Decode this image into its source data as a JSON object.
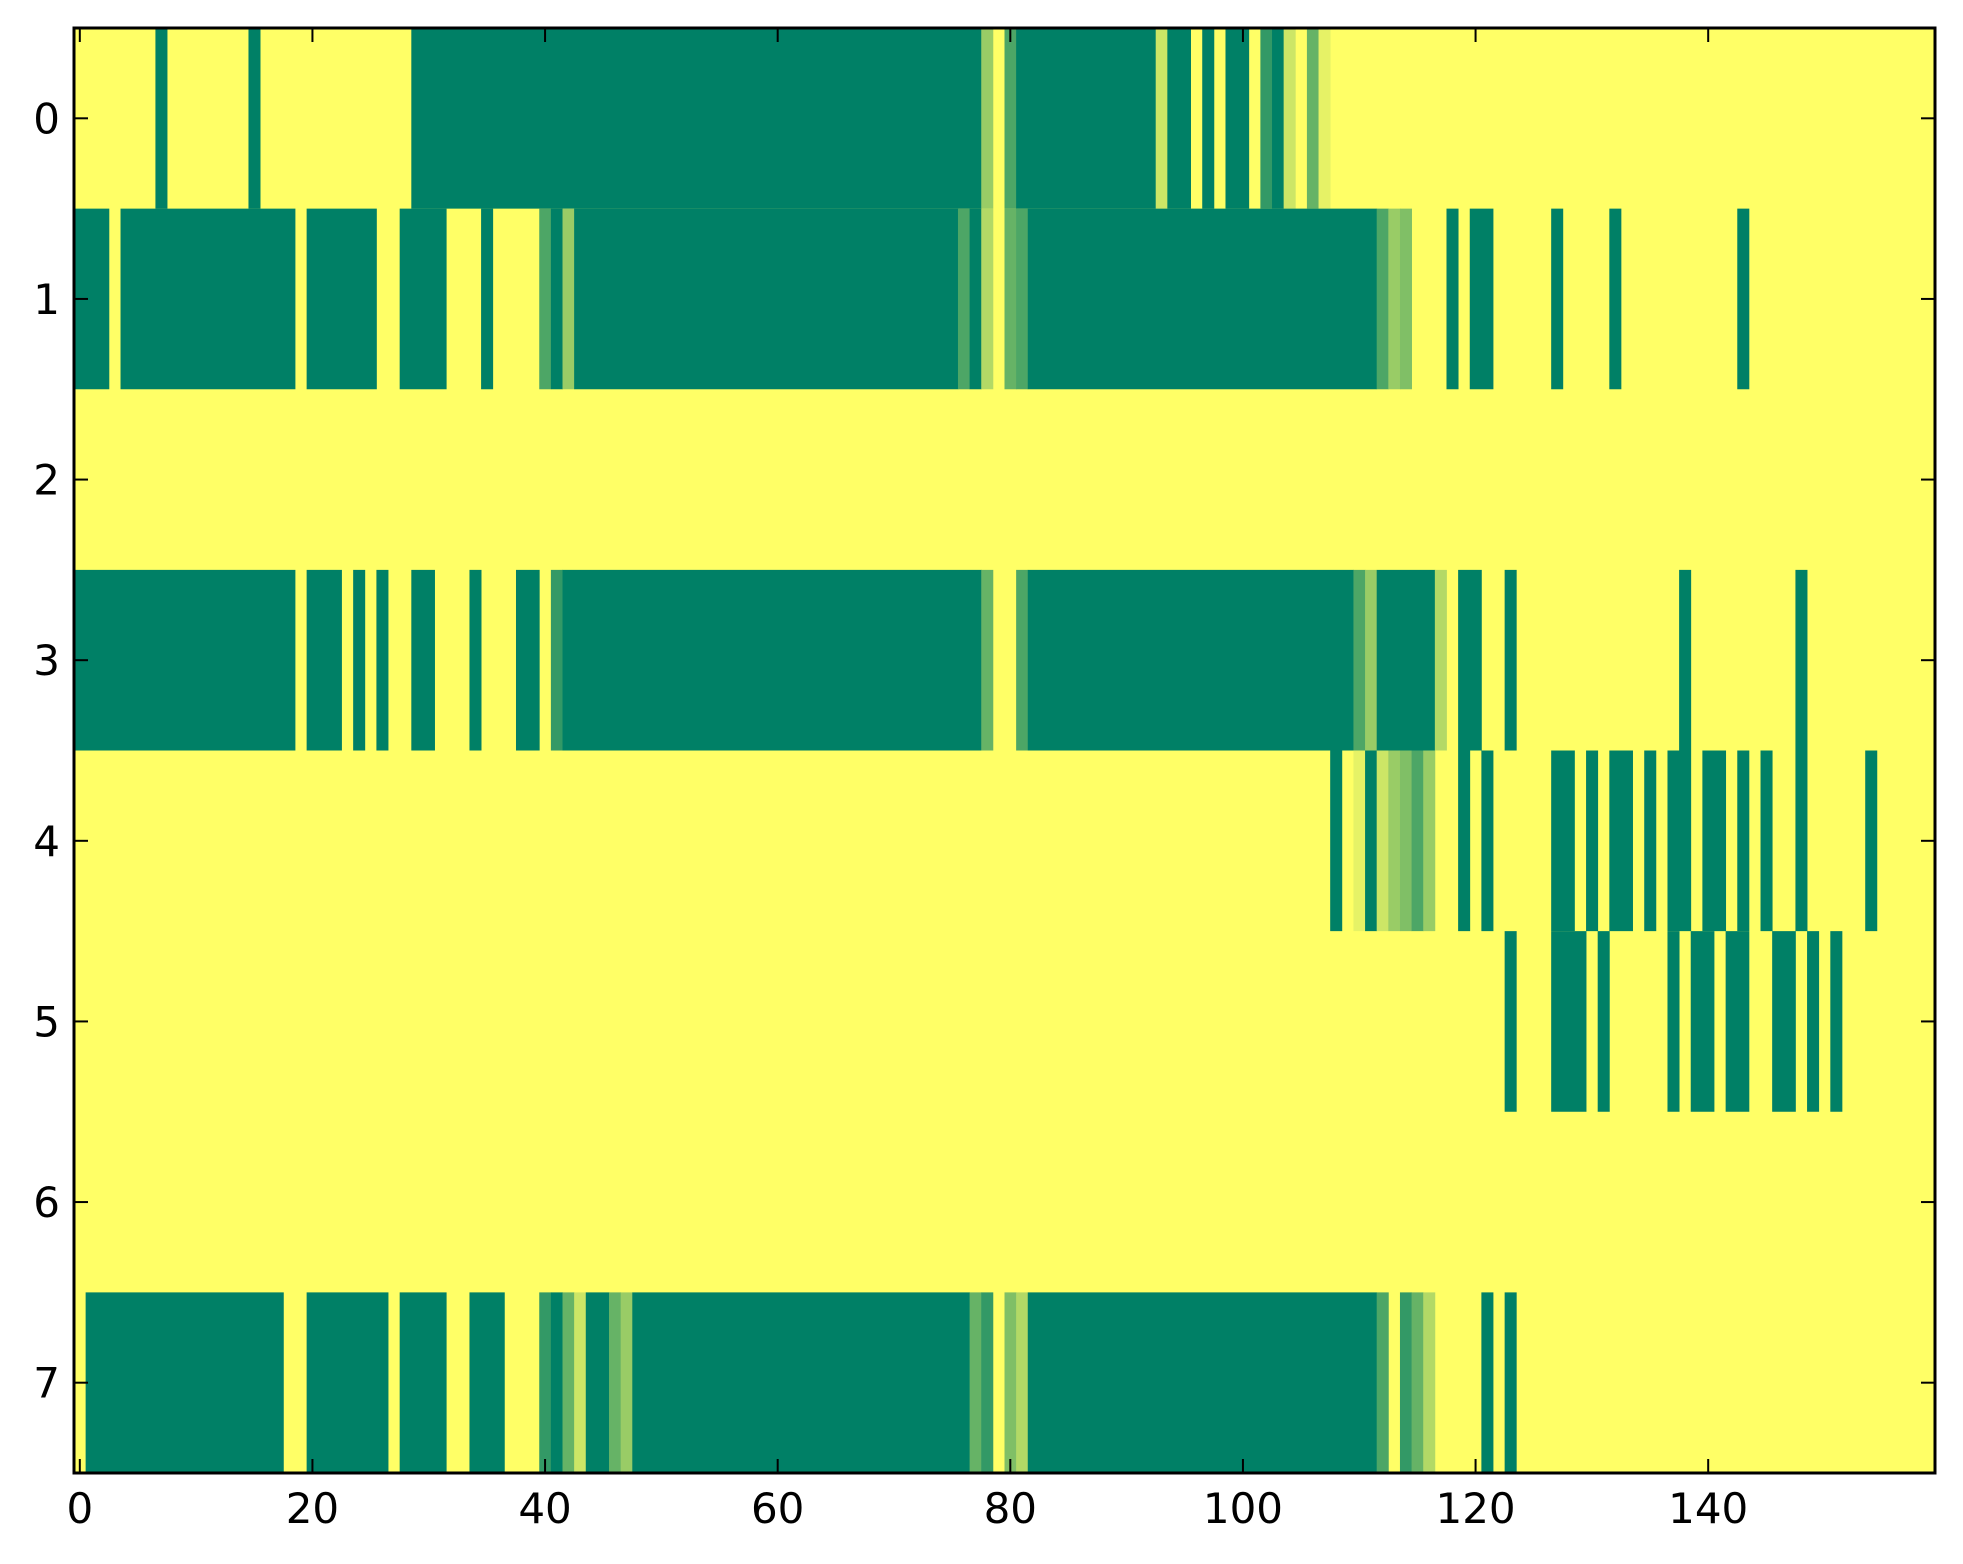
{
  "chart_data": {
    "type": "heatmap",
    "title": "",
    "xlabel": "",
    "ylabel": "",
    "xlim": [
      -0.5,
      159.5
    ],
    "ylim": [
      7.5,
      -0.5
    ],
    "x_ticks": [
      0,
      20,
      40,
      60,
      80,
      100,
      120,
      140
    ],
    "x_tick_labels": [
      "0",
      "20",
      "40",
      "60",
      "80",
      "100",
      "120",
      "140"
    ],
    "y_ticks": [
      0,
      1,
      2,
      3,
      4,
      5,
      6,
      7
    ],
    "y_tick_labels": [
      "0",
      "1",
      "2",
      "3",
      "4",
      "5",
      "6",
      "7"
    ],
    "n_columns": 160,
    "n_rows": 8,
    "colormap": "summer",
    "value_range": [
      0,
      1
    ],
    "background_value": 1,
    "legend": "none",
    "grid": false,
    "rows": [
      {
        "row": 0,
        "segments": [
          [
            7,
            7,
            0
          ],
          [
            15,
            15,
            0
          ],
          [
            29,
            77,
            0
          ],
          [
            78,
            78,
            0.6
          ],
          [
            80,
            80,
            0.3
          ],
          [
            81,
            92,
            0
          ],
          [
            93,
            93,
            0.8
          ],
          [
            94,
            95,
            0
          ],
          [
            97,
            97,
            0
          ],
          [
            99,
            100,
            0
          ],
          [
            102,
            102,
            0.2
          ],
          [
            103,
            103,
            0
          ],
          [
            104,
            104,
            0.8
          ],
          [
            106,
            106,
            0.4
          ],
          [
            107,
            107,
            0.9
          ]
        ]
      },
      {
        "row": 1,
        "segments": [
          [
            0,
            2,
            0
          ],
          [
            4,
            18,
            0
          ],
          [
            20,
            25,
            0
          ],
          [
            28,
            31,
            0
          ],
          [
            35,
            35,
            0
          ],
          [
            40,
            40,
            0.3
          ],
          [
            41,
            41,
            0
          ],
          [
            42,
            42,
            0.6
          ],
          [
            43,
            75,
            0
          ],
          [
            76,
            76,
            0.3
          ],
          [
            77,
            77,
            0
          ],
          [
            78,
            78,
            0.7
          ],
          [
            80,
            80,
            0.4
          ],
          [
            81,
            81,
            0.3
          ],
          [
            82,
            111,
            0
          ],
          [
            112,
            112,
            0.3
          ],
          [
            113,
            113,
            0.6
          ],
          [
            114,
            114,
            0.5
          ],
          [
            118,
            118,
            0
          ],
          [
            120,
            121,
            0
          ],
          [
            127,
            127,
            0
          ],
          [
            132,
            132,
            0
          ],
          [
            143,
            143,
            0
          ]
        ]
      },
      {
        "row": 2,
        "segments": []
      },
      {
        "row": 3,
        "segments": [
          [
            0,
            18,
            0
          ],
          [
            20,
            22,
            0
          ],
          [
            24,
            24,
            0
          ],
          [
            26,
            26,
            0
          ],
          [
            29,
            30,
            0
          ],
          [
            34,
            34,
            0
          ],
          [
            38,
            39,
            0
          ],
          [
            41,
            41,
            0.2
          ],
          [
            42,
            77,
            0
          ],
          [
            78,
            78,
            0.4
          ],
          [
            81,
            81,
            0.3
          ],
          [
            82,
            109,
            0
          ],
          [
            110,
            110,
            0.3
          ],
          [
            111,
            111,
            0.6
          ],
          [
            112,
            116,
            0
          ],
          [
            117,
            117,
            0.7
          ],
          [
            119,
            120,
            0
          ],
          [
            123,
            123,
            0
          ],
          [
            138,
            138,
            0
          ],
          [
            148,
            148,
            0
          ]
        ]
      },
      {
        "row": 4,
        "segments": [
          [
            108,
            108,
            0
          ],
          [
            110,
            110,
            0.9
          ],
          [
            111,
            111,
            0
          ],
          [
            112,
            112,
            0.8
          ],
          [
            113,
            113,
            0.6
          ],
          [
            114,
            114,
            0.5
          ],
          [
            115,
            115,
            0.3
          ],
          [
            116,
            116,
            0.6
          ],
          [
            119,
            119,
            0
          ],
          [
            121,
            121,
            0
          ],
          [
            127,
            128,
            0
          ],
          [
            130,
            130,
            0
          ],
          [
            132,
            133,
            0
          ],
          [
            135,
            135,
            0
          ],
          [
            137,
            138,
            0
          ],
          [
            140,
            141,
            0
          ],
          [
            143,
            143,
            0
          ],
          [
            145,
            145,
            0
          ],
          [
            148,
            148,
            0
          ],
          [
            154,
            154,
            0
          ]
        ]
      },
      {
        "row": 5,
        "segments": [
          [
            123,
            123,
            0
          ],
          [
            127,
            129,
            0
          ],
          [
            131,
            131,
            0
          ],
          [
            137,
            137,
            0
          ],
          [
            139,
            140,
            0
          ],
          [
            142,
            143,
            0
          ],
          [
            146,
            147,
            0
          ],
          [
            149,
            149,
            0
          ],
          [
            151,
            151,
            0
          ]
        ]
      },
      {
        "row": 6,
        "segments": []
      },
      {
        "row": 7,
        "segments": [
          [
            1,
            17,
            0
          ],
          [
            20,
            26,
            0
          ],
          [
            28,
            31,
            0
          ],
          [
            34,
            36,
            0
          ],
          [
            40,
            40,
            0.2
          ],
          [
            41,
            41,
            0
          ],
          [
            42,
            42,
            0.4
          ],
          [
            43,
            43,
            0.8
          ],
          [
            44,
            45,
            0
          ],
          [
            46,
            46,
            0.4
          ],
          [
            47,
            47,
            0.6
          ],
          [
            48,
            76,
            0
          ],
          [
            77,
            77,
            0.4
          ],
          [
            78,
            78,
            0.2
          ],
          [
            80,
            80,
            0.5
          ],
          [
            81,
            81,
            0.7
          ],
          [
            82,
            111,
            0
          ],
          [
            112,
            112,
            0.3
          ],
          [
            114,
            114,
            0.2
          ],
          [
            115,
            115,
            0.4
          ],
          [
            116,
            116,
            0.7
          ],
          [
            121,
            121,
            0
          ],
          [
            123,
            123,
            0
          ]
        ]
      }
    ]
  }
}
